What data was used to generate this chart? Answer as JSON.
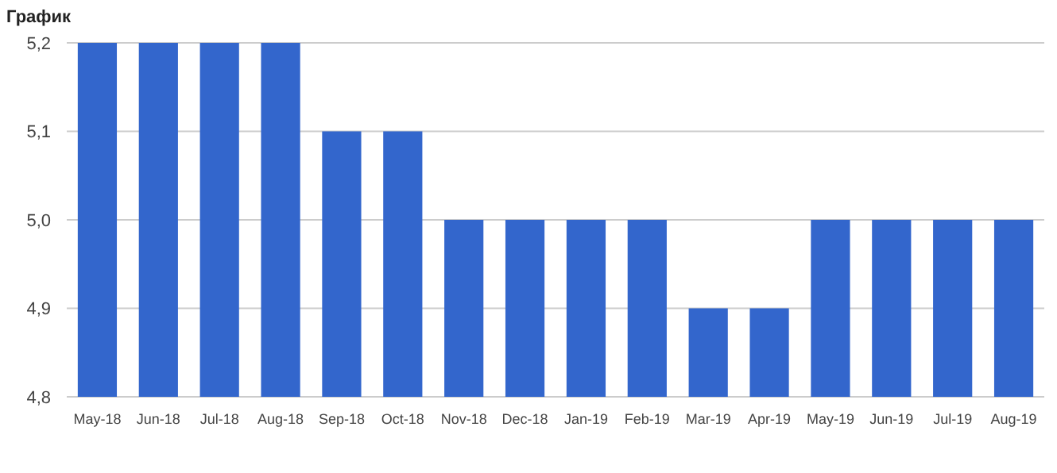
{
  "chart_data": {
    "type": "bar",
    "title": "График",
    "categories": [
      "May-18",
      "Jun-18",
      "Jul-18",
      "Aug-18",
      "Sep-18",
      "Oct-18",
      "Nov-18",
      "Dec-18",
      "Jan-19",
      "Feb-19",
      "Mar-19",
      "Apr-19",
      "May-19",
      "Jun-19",
      "Jul-19",
      "Aug-19"
    ],
    "values": [
      5.2,
      5.2,
      5.2,
      5.2,
      5.1,
      5.1,
      5.0,
      5.0,
      5.0,
      5.0,
      4.9,
      4.9,
      5.0,
      5.0,
      5.0,
      5.0
    ],
    "color": "#3366cc",
    "ylim": [
      4.8,
      5.2
    ],
    "yticks": [
      {
        "value": 4.8,
        "label": "4,8"
      },
      {
        "value": 4.9,
        "label": "4,9"
      },
      {
        "value": 5.0,
        "label": "5,0"
      },
      {
        "value": 5.1,
        "label": "5,1"
      },
      {
        "value": 5.2,
        "label": "5,2"
      }
    ],
    "grid": true
  }
}
